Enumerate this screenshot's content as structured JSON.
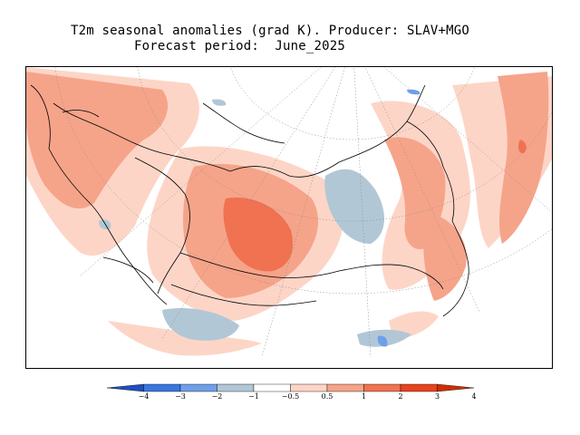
{
  "title": {
    "line1": "T2m seasonal anomalies (grad K). Producer: SLAV+MGO",
    "line2": "Forecast period:  June_2025"
  },
  "map": {
    "variable": "T2m seasonal anomalies",
    "units": "grad K",
    "producer": "SLAV+MGO",
    "period": "June_2025",
    "projection": "polar stereographic"
  },
  "legend": {
    "colors": [
      "#1f4fbf",
      "#3a76e0",
      "#6f9fe8",
      "#b2c7d6",
      "#ffffff",
      "#fdd5c7",
      "#f5a48a",
      "#f07250",
      "#e8431e",
      "#cc3000"
    ],
    "labels": [
      "−4",
      "−3",
      "−2",
      "−1",
      "−0.5",
      "0.5",
      "1",
      "2",
      "3",
      "4"
    ]
  }
}
